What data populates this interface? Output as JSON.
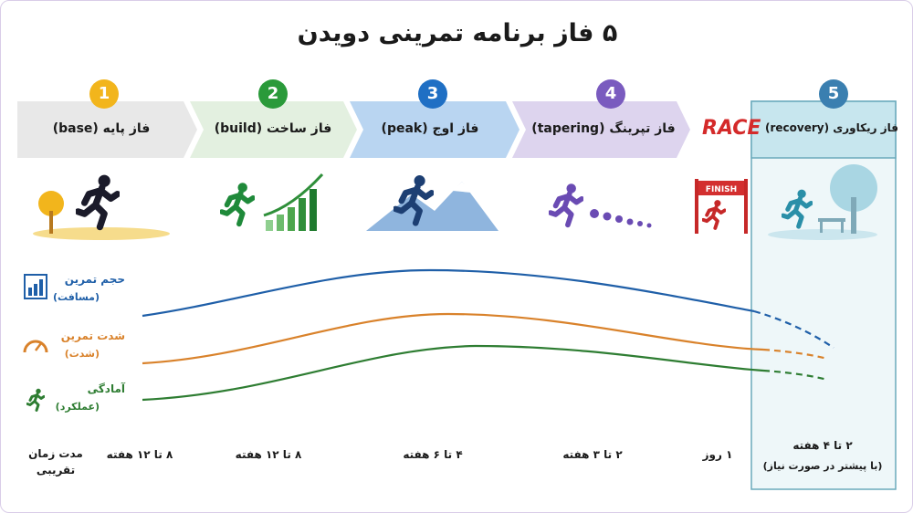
{
  "title": "۵ فاز برنامه تمرینی دویدن",
  "phases": [
    {
      "number": "1",
      "label": "فاز پایه (base)"
    },
    {
      "number": "2",
      "label": "فاز ساخت (build)"
    },
    {
      "number": "3",
      "label": "فاز اوج (peak)"
    },
    {
      "number": "4",
      "label": "فاز تپرینگ (tapering)"
    },
    {
      "number": "5",
      "label": "فاز ریکاوری (recovery)"
    }
  ],
  "race": {
    "label": "RACE",
    "finish": "FINISH"
  },
  "legend": [
    {
      "name": "حجم تمرین",
      "note": "(مسافت)"
    },
    {
      "name": "شدت تمرین",
      "note": "(شدت)"
    },
    {
      "name": "آمادگی",
      "note": "(عملکرد)"
    }
  ],
  "durations": {
    "label": "مدت زمان تقریبی",
    "items": [
      "۸ تا ۱۲ هفته",
      "۸ تا ۱۲ هفته",
      "۴ تا ۶ هفته",
      "۲ تا ۳ هفته",
      "۱ روز",
      "۲ تا ۴ هفته"
    ],
    "note": "(با پیشتر در صورت نیاز)"
  }
}
